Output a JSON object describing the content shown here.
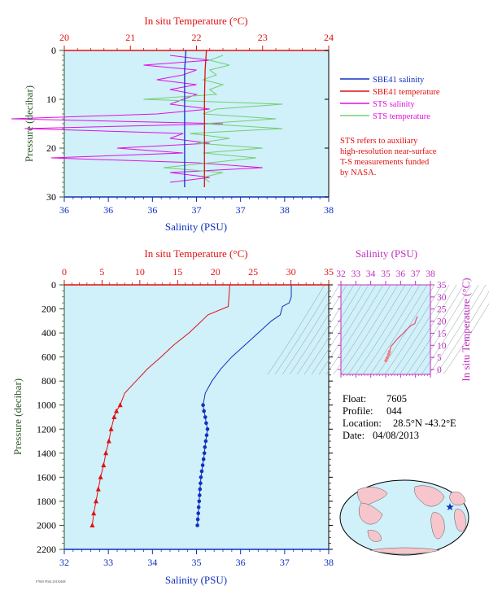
{
  "top_chart": {
    "temp_axis_title": "In situ Temperature (°C)",
    "temp_ticks": [
      "20",
      "21",
      "22",
      "23",
      "24"
    ],
    "sal_axis_title": "Salinity (PSU)",
    "sal_ticks": [
      "36",
      "36",
      "36",
      "37",
      "37",
      "38",
      "38"
    ],
    "pressure_axis_title": "Pressure (decibar)",
    "pressure_ticks": [
      "0",
      "10",
      "20",
      "30"
    ]
  },
  "legend": {
    "items": [
      {
        "label": "SBE41 salinity",
        "color": "#1030c0"
      },
      {
        "label": "SBE41 temperature",
        "color": "#e01010"
      },
      {
        "label": "STS salinity",
        "color": "#e010e0"
      },
      {
        "label": "STS temperature",
        "color": "#70d070"
      }
    ],
    "note_lines": [
      "STS refers to auxiliary",
      "high-resolution near-surface",
      "T-S measurements funded",
      "by NASA."
    ]
  },
  "bottom_chart": {
    "temp_axis_title": "In situ Temperature (°C)",
    "temp_ticks": [
      "0",
      "5",
      "10",
      "15",
      "20",
      "25",
      "30",
      "35"
    ],
    "sal_axis_title": "Salinity (PSU)",
    "sal_ticks": [
      "32",
      "33",
      "34",
      "35",
      "36",
      "37",
      "38"
    ],
    "pressure_axis_title": "Pressure (decibar)",
    "pressure_ticks": [
      "0",
      "200",
      "400",
      "600",
      "800",
      "1000",
      "1200",
      "1400",
      "1600",
      "1800",
      "2000",
      "2200"
    ]
  },
  "ts_chart": {
    "sal_axis_title": "Salinity (PSU)",
    "sal_ticks": [
      "32",
      "33",
      "34",
      "35",
      "36",
      "37",
      "38"
    ],
    "temp_axis_title": "In situ Temperature (°C)",
    "temp_ticks": [
      "0",
      "5",
      "10",
      "15",
      "20",
      "25",
      "30",
      "35"
    ]
  },
  "info": {
    "float_label": "Float:",
    "float_value": "7605",
    "profile_label": "Profile:",
    "profile_value": "044",
    "location_label": "Location:",
    "location_value": "28.5°N  -43.2°E",
    "date_label": "Date:",
    "date_value": "04/08/2013"
  },
  "footer_text": "F7605 P044 20130408",
  "colors": {
    "plot_bg": "#d0f0fa",
    "temperature": "#e01010",
    "salinity": "#1030c0",
    "sts_salinity": "#e010e0",
    "sts_temperature": "#70d070",
    "pressure_axis": "#2c5a2c",
    "ts_axis": "#c030c0"
  },
  "chart_data": [
    {
      "type": "line",
      "title": "",
      "xlabel_top": "In situ Temperature (°C)",
      "xlabel_bottom": "Salinity (PSU)",
      "ylabel": "Pressure (decibar)",
      "temperature_lim": [
        20,
        24
      ],
      "salinity_lim": [
        36,
        38
      ],
      "pressure_lim": [
        30,
        0
      ],
      "series": [
        {
          "name": "SBE41 salinity",
          "variable": "salinity",
          "pressure": [
            0,
            4,
            10,
            16,
            22,
            28
          ],
          "values": [
            36.92,
            36.91,
            36.91,
            36.91,
            36.91,
            36.91
          ]
        },
        {
          "name": "SBE41 temperature",
          "variable": "temperature",
          "pressure": [
            0,
            4,
            10,
            16,
            22,
            28
          ],
          "values": [
            22.15,
            22.13,
            22.12,
            22.12,
            22.12,
            22.12
          ]
        },
        {
          "name": "STS salinity",
          "variable": "salinity",
          "pressure": [
            1,
            2,
            3,
            4,
            5,
            6,
            7,
            8,
            9,
            10,
            11,
            12,
            13,
            14,
            15,
            16,
            17,
            18,
            19,
            20,
            21,
            22,
            23,
            24,
            25,
            26,
            27
          ],
          "values": [
            36.8,
            37.1,
            36.6,
            37.0,
            36.9,
            36.7,
            37.0,
            36.8,
            37.0,
            36.9,
            36.8,
            37.1,
            36.7,
            35.6,
            37.2,
            35.7,
            36.9,
            36.8,
            37.1,
            36.4,
            36.9,
            35.9,
            37.0,
            37.5,
            36.8,
            37.1,
            36.8
          ]
        },
        {
          "name": "STS temperature",
          "variable": "temperature",
          "pressure": [
            1,
            2,
            3,
            4,
            5,
            6,
            7,
            8,
            9,
            10,
            11,
            12,
            13,
            14,
            15,
            16,
            17,
            18,
            19,
            20,
            21,
            22,
            23,
            24,
            25,
            26,
            27
          ],
          "values": [
            22.4,
            22.2,
            22.5,
            22.2,
            22.3,
            22.1,
            22.4,
            22.2,
            22.3,
            21.2,
            23.3,
            22.3,
            22.1,
            23.2,
            22.1,
            23.3,
            21.9,
            22.5,
            22.0,
            23.0,
            22.1,
            22.9,
            22.2,
            21.5,
            22.4,
            22.1,
            22.2
          ]
        }
      ]
    },
    {
      "type": "line",
      "title": "",
      "xlabel_top": "In situ Temperature (°C)",
      "xlabel_bottom": "Salinity (PSU)",
      "ylabel": "Pressure (decibar)",
      "temperature_lim": [
        0,
        35
      ],
      "salinity_lim": [
        32,
        38
      ],
      "pressure_lim": [
        2200,
        0
      ],
      "series": [
        {
          "name": "Temperature",
          "variable": "temperature",
          "pressure": [
            0,
            100,
            180,
            250,
            300,
            400,
            500,
            600,
            700,
            800,
            900,
            1000,
            1050,
            1100,
            1200,
            1300,
            1400,
            1500,
            1600,
            1700,
            1800,
            1900,
            2000
          ],
          "values": [
            21.9,
            21.8,
            21.7,
            19.0,
            18.2,
            16.5,
            14.5,
            12.8,
            11.0,
            9.5,
            8.0,
            7.4,
            6.9,
            6.6,
            6.2,
            5.9,
            5.5,
            5.2,
            4.8,
            4.5,
            4.2,
            3.9,
            3.7
          ]
        },
        {
          "name": "Salinity",
          "variable": "salinity",
          "pressure": [
            0,
            100,
            150,
            180,
            250,
            300,
            400,
            500,
            600,
            700,
            800,
            900,
            1000,
            1050,
            1100,
            1150,
            1200,
            1250,
            1300,
            1350,
            1400,
            1450,
            1500,
            1550,
            1600,
            1650,
            1700,
            1750,
            1800,
            1850,
            1900,
            1950,
            2000
          ],
          "values": [
            37.15,
            37.15,
            37.1,
            36.95,
            36.9,
            36.7,
            36.4,
            36.1,
            35.8,
            35.55,
            35.35,
            35.2,
            35.15,
            35.17,
            35.2,
            35.22,
            35.25,
            35.23,
            35.21,
            35.19,
            35.18,
            35.16,
            35.14,
            35.12,
            35.1,
            35.09,
            35.08,
            35.07,
            35.06,
            35.05,
            35.04,
            35.03,
            35.02
          ]
        }
      ]
    },
    {
      "type": "line",
      "title": "",
      "xlabel": "Salinity (PSU)",
      "ylabel": "In situ Temperature (°C)",
      "xlim": [
        32,
        38
      ],
      "ylim": [
        -2,
        35
      ],
      "series": [
        {
          "name": "T-S",
          "x": [
            35.02,
            35.1,
            35.2,
            35.25,
            35.35,
            35.55,
            35.8,
            36.1,
            36.4,
            36.7,
            36.95,
            37.1,
            37.15
          ],
          "y": [
            3.7,
            4.8,
            6.2,
            7.4,
            9.5,
            11.0,
            12.8,
            14.5,
            16.5,
            18.2,
            19.0,
            21.7,
            21.9
          ]
        }
      ]
    },
    {
      "type": "scatter",
      "title": "",
      "projection": "world map",
      "points": [
        {
          "lat": 28.5,
          "lon": -43.2,
          "marker": "star"
        }
      ]
    }
  ]
}
